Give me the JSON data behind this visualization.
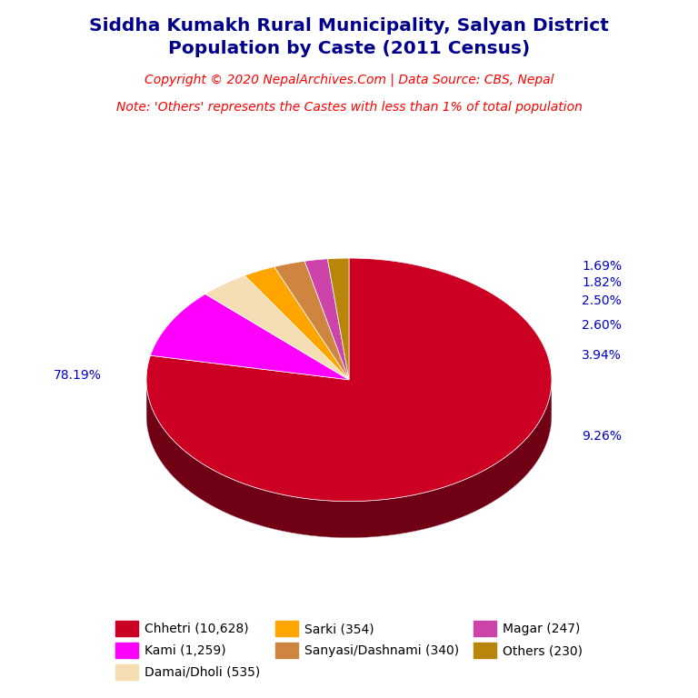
{
  "title_line1": "Siddha Kumakh Rural Municipality, Salyan District",
  "title_line2": "Population by Caste (2011 Census)",
  "title_color": "#00008B",
  "copyright_text": "Copyright © 2020 NepalArchives.Com | Data Source: CBS, Nepal",
  "copyright_color": "#FF0000",
  "note_text": "Note: 'Others' represents the Castes with less than 1% of total population",
  "note_color": "#FF0000",
  "slices": [
    {
      "label": "Chhetri (10,628)",
      "value": 78.19,
      "color": "#CC0022"
    },
    {
      "label": "Kami (1,259)",
      "value": 9.26,
      "color": "#FF00FF"
    },
    {
      "label": "Damai/Dholi (535)",
      "value": 3.94,
      "color": "#F5DEB3"
    },
    {
      "label": "Sarki (354)",
      "value": 2.6,
      "color": "#FFA500"
    },
    {
      "label": "Sanyasi/Dashnami (340)",
      "value": 2.5,
      "color": "#CD853F"
    },
    {
      "label": "Magar (247)",
      "value": 1.82,
      "color": "#CC44AA"
    },
    {
      "label": "Others (230)",
      "value": 1.69,
      "color": "#B8860B"
    }
  ],
  "pct_color": "#0000CD",
  "shadow_color": "#7B0000",
  "background_color": "#FFFFFF",
  "legend_order": [
    0,
    1,
    2,
    3,
    4,
    5,
    6
  ]
}
